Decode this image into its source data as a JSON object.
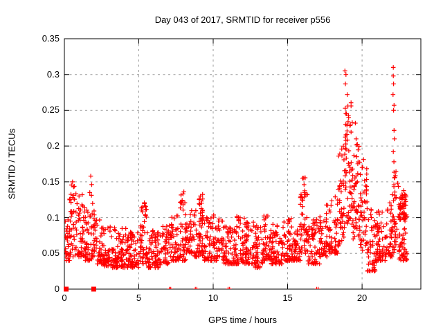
{
  "title": "Day 043 of 2017, SRMTID for receiver p556",
  "chart_data": {
    "type": "scatter",
    "title": "Day 043 of 2017, SRMTID for receiver p556",
    "xlabel": "GPS time / hours",
    "ylabel": "SRMTID / TECUs",
    "xlim": [
      0,
      23.95
    ],
    "ylim": [
      0,
      0.35
    ],
    "xticks": [
      0,
      5,
      10,
      15,
      20
    ],
    "xtick_labels": [
      "0",
      "5",
      "10",
      "15",
      "20"
    ],
    "yticks": [
      0,
      0.05,
      0.1,
      0.15,
      0.2,
      0.25,
      0.3,
      0.35
    ],
    "ytick_labels": [
      "0",
      "0.05",
      "0.1",
      "0.15",
      "0.2",
      "0.25",
      "0.3",
      "0.35"
    ],
    "grid": true,
    "legend": "none",
    "marker": "plus",
    "marker_color": "#ff0000",
    "grid_color": "#9a9a9a",
    "border_color": "#000000",
    "seed": 20170043,
    "series_name": "SRMTID",
    "bands": [
      [
        0.05,
        0.35,
        28,
        0.04,
        0.1,
        1.6
      ],
      [
        0.35,
        0.85,
        45,
        0.045,
        0.148,
        1.9
      ],
      [
        0.85,
        1.35,
        42,
        0.045,
        0.132,
        1.9
      ],
      [
        1.35,
        1.85,
        45,
        0.04,
        0.148,
        2.0
      ],
      [
        1.85,
        2.15,
        26,
        0.045,
        0.122,
        1.9
      ],
      [
        2.15,
        2.65,
        42,
        0.035,
        0.102,
        2.0
      ],
      [
        2.65,
        3.15,
        42,
        0.032,
        0.09,
        1.9
      ],
      [
        3.15,
        4.15,
        85,
        0.03,
        0.086,
        1.9
      ],
      [
        4.15,
        5.0,
        70,
        0.03,
        0.08,
        1.8
      ],
      [
        5.0,
        5.6,
        42,
        0.035,
        0.09,
        1.8
      ],
      [
        5.15,
        5.55,
        14,
        0.088,
        0.125,
        1.2
      ],
      [
        5.6,
        6.5,
        72,
        0.03,
        0.082,
        1.8
      ],
      [
        6.5,
        7.0,
        38,
        0.035,
        0.09,
        1.7
      ],
      [
        7.0,
        7.6,
        45,
        0.04,
        0.105,
        1.8
      ],
      [
        7.6,
        8.15,
        42,
        0.04,
        0.122,
        1.8
      ],
      [
        7.8,
        8.1,
        6,
        0.118,
        0.137,
        1.0
      ],
      [
        8.15,
        8.7,
        42,
        0.05,
        0.126,
        1.8
      ],
      [
        8.7,
        9.4,
        52,
        0.045,
        0.118,
        1.7
      ],
      [
        9.05,
        9.35,
        16,
        0.095,
        0.133,
        1.0
      ],
      [
        9.4,
        10.0,
        48,
        0.04,
        0.1,
        1.8
      ],
      [
        10.0,
        10.7,
        52,
        0.04,
        0.107,
        1.8
      ],
      [
        10.7,
        11.35,
        48,
        0.035,
        0.092,
        1.8
      ],
      [
        11.35,
        12.15,
        65,
        0.035,
        0.102,
        1.9
      ],
      [
        12.15,
        12.75,
        48,
        0.035,
        0.096,
        1.9
      ],
      [
        12.75,
        13.35,
        48,
        0.03,
        0.092,
        1.8
      ],
      [
        13.35,
        13.85,
        42,
        0.04,
        0.112,
        1.9
      ],
      [
        13.85,
        14.65,
        65,
        0.035,
        0.092,
        1.8
      ],
      [
        14.65,
        15.35,
        55,
        0.04,
        0.102,
        1.9
      ],
      [
        15.35,
        15.85,
        40,
        0.04,
        0.096,
        1.8
      ],
      [
        15.85,
        16.35,
        42,
        0.05,
        0.138,
        1.6
      ],
      [
        15.9,
        16.2,
        8,
        0.128,
        0.156,
        1.0
      ],
      [
        16.35,
        17.15,
        58,
        0.035,
        0.1,
        1.8
      ],
      [
        17.15,
        17.75,
        45,
        0.045,
        0.126,
        1.8
      ],
      [
        17.75,
        18.35,
        48,
        0.05,
        0.132,
        1.7
      ],
      [
        18.35,
        18.85,
        48,
        0.06,
        0.2,
        1.6
      ],
      [
        18.85,
        19.35,
        58,
        0.09,
        0.262,
        1.25
      ],
      [
        19.35,
        19.85,
        48,
        0.07,
        0.205,
        1.5
      ],
      [
        19.85,
        20.35,
        48,
        0.05,
        0.188,
        1.45
      ],
      [
        20.35,
        20.95,
        48,
        0.025,
        0.112,
        1.7
      ],
      [
        20.95,
        21.55,
        50,
        0.04,
        0.122,
        1.8
      ],
      [
        21.55,
        22.05,
        45,
        0.045,
        0.136,
        1.8
      ],
      [
        22.05,
        22.45,
        38,
        0.05,
        0.172,
        1.6
      ],
      [
        22.45,
        23.05,
        60,
        0.04,
        0.138,
        1.4
      ],
      [
        22.5,
        22.95,
        32,
        0.095,
        0.132,
        1.0
      ]
    ],
    "outlier_points": [
      [
        0.55,
        0.15
      ],
      [
        0.62,
        0.143
      ],
      [
        1.77,
        0.158
      ],
      [
        16.0,
        0.155
      ],
      [
        18.85,
        0.305
      ],
      [
        18.92,
        0.3
      ],
      [
        18.88,
        0.287
      ],
      [
        19.0,
        0.272
      ],
      [
        19.05,
        0.256
      ],
      [
        18.95,
        0.245
      ],
      [
        19.1,
        0.24
      ],
      [
        19.55,
        0.232
      ],
      [
        19.6,
        0.21
      ],
      [
        20.0,
        0.17
      ],
      [
        22.1,
        0.31
      ],
      [
        22.1,
        0.298
      ],
      [
        22.12,
        0.287
      ],
      [
        22.08,
        0.272
      ],
      [
        22.15,
        0.257
      ],
      [
        22.12,
        0.25
      ],
      [
        22.15,
        0.222
      ],
      [
        22.18,
        0.21
      ],
      [
        22.1,
        0.192
      ],
      [
        22.14,
        0.178
      ]
    ],
    "zero_value_squares_x": [
      0.12,
      1.97
    ],
    "zero_value_ticks_x": [
      7.05,
      7.15,
      8.8,
      8.9,
      11.0,
      11.1,
      16.95,
      17.05
    ]
  }
}
